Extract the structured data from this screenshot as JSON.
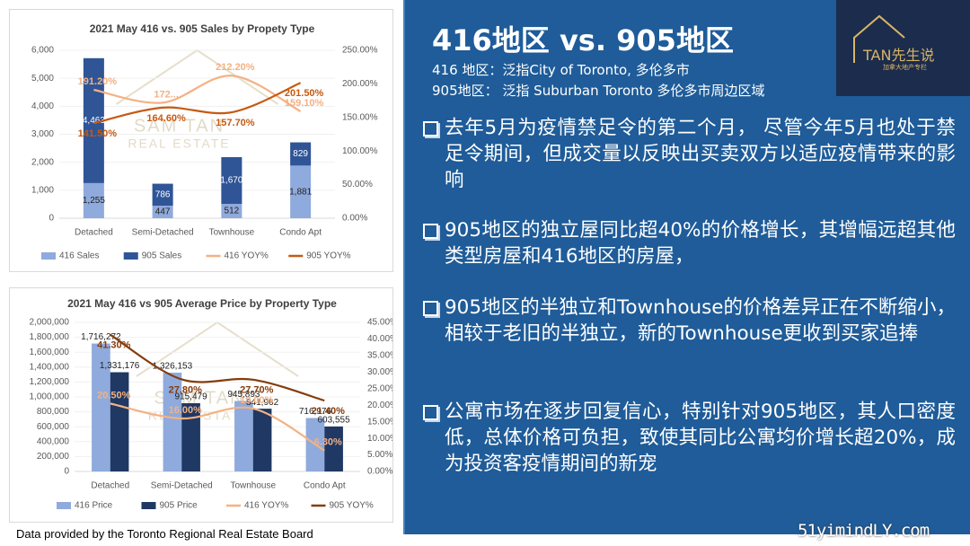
{
  "chart_data": [
    {
      "type": "combo",
      "title": "2021 May 416 vs. 905 Sales by Propety Type",
      "stacked": true,
      "grid": true,
      "watermark": [
        "SAM TAN",
        "REAL ESTATE"
      ],
      "categories": [
        "Detached",
        "Semi-Detached",
        "Townhouse",
        "Condo Apt"
      ],
      "ylim": [
        0,
        6000
      ],
      "yticks": [
        0,
        {
          "value": 1000,
          "label": "1,000"
        },
        {
          "value": 2000,
          "label": "2,000"
        },
        {
          "value": 3000,
          "label": "3,000"
        },
        {
          "value": 4000,
          "label": "4,000"
        },
        {
          "value": 5000,
          "label": "5,000"
        },
        {
          "value": 6000,
          "label": "6,000"
        }
      ],
      "y2lim": [
        0,
        250
      ],
      "y2ticks": [
        {
          "value": 0,
          "label": "0.00%"
        },
        {
          "value": 50,
          "label": "50.00%"
        },
        {
          "value": 100,
          "label": "100.00%"
        },
        {
          "value": 150,
          "label": "150.00%"
        },
        {
          "value": 200,
          "label": "200.00%"
        },
        {
          "value": 250,
          "label": "250.00%"
        }
      ],
      "series": [
        {
          "name": "416 Sales",
          "kind": "bar",
          "color": "#8faadc",
          "values": [
            1255,
            447,
            512,
            1881
          ],
          "value_labels": [
            "1,255",
            "447",
            "512",
            "1,881"
          ]
        },
        {
          "name": "905 Sales",
          "kind": "bar",
          "color": "#2f5597",
          "values": [
            4463,
            786,
            1670,
            829
          ],
          "value_labels": [
            "4,463",
            "786",
            "1,670",
            "829"
          ]
        },
        {
          "name": "416 YOY%",
          "kind": "line",
          "axis": "y2",
          "color": "#f4b183",
          "values": [
            191.2,
            172,
            212.2,
            159.1
          ],
          "value_labels": [
            "191.20%",
            "172...",
            "212.20%",
            "159.10%"
          ]
        },
        {
          "name": "905 YOY%",
          "kind": "line",
          "axis": "y2",
          "color": "#c55a11",
          "values": [
            141.5,
            164.6,
            157.7,
            201.5
          ],
          "value_labels": [
            "141.50%",
            "164.60%",
            "157.70%",
            "201.50%"
          ]
        }
      ]
    },
    {
      "type": "combo",
      "title": "2021 May 416 vs 905 Average Price by Property Type",
      "stacked": false,
      "grid": true,
      "watermark": [
        "SAM TAN",
        "REAL ESTATE"
      ],
      "categories": [
        "Detached",
        "Semi-Detached",
        "Townhouse",
        "Condo Apt"
      ],
      "ylim": [
        0,
        2000000
      ],
      "yticks": [
        0,
        {
          "value": 200000,
          "label": "200,000"
        },
        {
          "value": 400000,
          "label": "400,000"
        },
        {
          "value": 600000,
          "label": "600,000"
        },
        {
          "value": 800000,
          "label": "800,000"
        },
        {
          "value": 1000000,
          "label": "1,000,000"
        },
        {
          "value": 1200000,
          "label": "1,200,000"
        },
        {
          "value": 1400000,
          "label": "1,400,000"
        },
        {
          "value": 1600000,
          "label": "1,600,000"
        },
        {
          "value": 1800000,
          "label": "1,800,000"
        },
        {
          "value": 2000000,
          "label": "2,000,000"
        }
      ],
      "y2lim": [
        0,
        45
      ],
      "y2ticks": [
        {
          "value": 0,
          "label": "0.00%"
        },
        {
          "value": 5,
          "label": "5.00%"
        },
        {
          "value": 10,
          "label": "10.00%"
        },
        {
          "value": 15,
          "label": "15.00%"
        },
        {
          "value": 20,
          "label": "20.00%"
        },
        {
          "value": 25,
          "label": "25.00%"
        },
        {
          "value": 30,
          "label": "30.00%"
        },
        {
          "value": 35,
          "label": "35.00%"
        },
        {
          "value": 40,
          "label": "40.00%"
        },
        {
          "value": 45,
          "label": "45.00%"
        }
      ],
      "series": [
        {
          "name": "416 Price",
          "kind": "bar",
          "color": "#8faadc",
          "values": [
            1716272,
            1326153,
            945893,
            716976
          ],
          "value_labels": [
            "1,716,272",
            "1,326,153",
            "945,893",
            "716,976"
          ]
        },
        {
          "name": "905 Price",
          "kind": "bar",
          "color": "#1f3864",
          "values": [
            1331176,
            915479,
            841962,
            603555
          ],
          "value_labels": [
            "1,331,176",
            "915,479",
            "841,962",
            "603,555"
          ]
        },
        {
          "name": "416 YOY%",
          "kind": "line",
          "axis": "y2",
          "color": "#f4b183",
          "values": [
            20.5,
            16.0,
            19.0,
            6.3
          ],
          "value_labels": [
            "20.50%",
            "16.00%",
            "19.00%",
            "6.30%"
          ]
        },
        {
          "name": "905 YOY%",
          "kind": "line",
          "axis": "y2",
          "color": "#843c0c",
          "values": [
            41.3,
            27.8,
            27.7,
            21.4
          ],
          "value_labels": [
            "41.30%",
            "27.80%",
            "27.70%",
            "21.40%"
          ]
        }
      ]
    }
  ],
  "footer": "Data provided by the Toronto Regional Real Estate Board",
  "panel": {
    "title": "416地区 vs. 905地区",
    "lines": [
      "416 地区：泛指City of Toronto, 多伦多市",
      "905地区： 泛指 Suburban Toronto 多伦多市周边区域"
    ],
    "bullets": [
      "去年5月为疫情禁足令的第二个月， 尽管今年5月也处于禁足令期间，但成交量以反映出买卖双方以适应疫情带来的影响",
      "905地区的独立屋同比超40%的价格增长，其增幅远超其他类型房屋和416地区的房屋，",
      "905地区的半独立和Townhouse的价格差异正在不断缩小，相较于老旧的半独立，新的Townhouse更收到买家追捧",
      "公寓市场在逐步回复信心，特别针对905地区，其人口密度低，总体价格可负担，致使其同比公寓均价增长超20%，成为投资客疫情期间的新宠"
    ]
  },
  "logo": {
    "name": "TAN先生说",
    "tagline": "加拿大地产专栏"
  },
  "watermark": "51yimindLY.com"
}
